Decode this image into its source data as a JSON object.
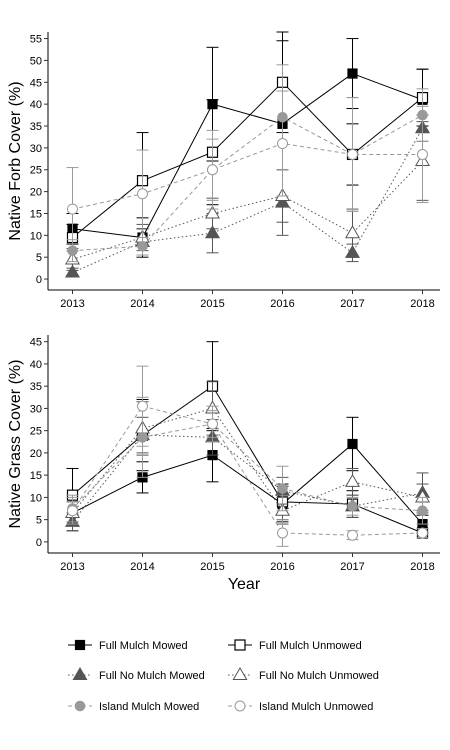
{
  "chart_data": [
    {
      "type": "line",
      "title": "",
      "xlabel": "",
      "ylabel": "Native Forb Cover (%)",
      "x": [
        2013,
        2014,
        2015,
        2016,
        2017,
        2018
      ],
      "xlim": [
        2012.65,
        2018.25
      ],
      "ylim": [
        -2.5,
        56.5
      ],
      "yticks": [
        0,
        5,
        10,
        15,
        20,
        25,
        30,
        35,
        40,
        45,
        50,
        55
      ],
      "grid": false,
      "series": [
        {
          "key": "full_mulch_mowed",
          "values": [
            11.5,
            9.5,
            40.0,
            35.5,
            47.0,
            41.0
          ],
          "err": [
            3.5,
            4.5,
            13.0,
            19.0,
            8.0,
            7.0
          ]
        },
        {
          "key": "full_mulch_unmowed",
          "values": [
            9.5,
            22.5,
            29.0,
            45.0,
            28.5,
            41.5
          ],
          "err": [
            3.0,
            11.0,
            12.0,
            11.5,
            7.0,
            6.5
          ]
        },
        {
          "key": "full_no_mulch_mowed",
          "values": [
            1.5,
            8.5,
            10.5,
            17.5,
            6.0,
            34.5
          ],
          "err": [
            1.0,
            3.0,
            4.5,
            7.5,
            2.0,
            3.0
          ]
        },
        {
          "key": "full_no_mulch_unmowed",
          "values": [
            4.5,
            9.5,
            15.0,
            19.0,
            10.5,
            27.0
          ],
          "err": [
            2.5,
            3.0,
            3.5,
            6.0,
            5.5,
            9.0
          ]
        },
        {
          "key": "island_mulch_mowed",
          "values": [
            6.5,
            7.5,
            25.0,
            37.0,
            28.5,
            37.5
          ],
          "err": [
            2.5,
            2.0,
            7.0,
            12.0,
            13.0,
            6.0
          ]
        },
        {
          "key": "island_mulch_unmowed",
          "values": [
            16.0,
            19.5,
            25.0,
            31.0,
            28.5,
            28.5
          ],
          "err": [
            9.5,
            10.0,
            9.0,
            12.0,
            13.0,
            11.0
          ]
        }
      ]
    },
    {
      "type": "line",
      "title": "",
      "xlabel": "Year",
      "ylabel": "Native Grass Cover (%)",
      "x": [
        2013,
        2014,
        2015,
        2016,
        2017,
        2018
      ],
      "xlim": [
        2012.65,
        2018.25
      ],
      "ylim": [
        -2.5,
        46.5
      ],
      "yticks": [
        0,
        5,
        10,
        15,
        20,
        25,
        30,
        35,
        40,
        45
      ],
      "grid": false,
      "series": [
        {
          "key": "full_mulch_mowed",
          "values": [
            6.5,
            14.5,
            19.5,
            8.5,
            22.0,
            4.0
          ],
          "err": [
            4.0,
            3.5,
            6.0,
            4.0,
            6.0,
            2.0
          ]
        },
        {
          "key": "full_mulch_unmowed",
          "values": [
            10.5,
            24.0,
            35.0,
            9.0,
            8.5,
            2.0
          ],
          "err": [
            6.0,
            8.0,
            10.0,
            4.0,
            3.0,
            1.0
          ]
        },
        {
          "key": "full_no_mulch_mowed",
          "values": [
            4.5,
            24.0,
            23.5,
            11.5,
            8.0,
            11.0
          ],
          "err": [
            2.0,
            4.0,
            4.0,
            3.0,
            2.5,
            4.5
          ]
        },
        {
          "key": "full_no_mulch_unmowed",
          "values": [
            6.5,
            25.5,
            30.0,
            7.0,
            13.5,
            10.0
          ],
          "err": [
            2.5,
            6.0,
            6.0,
            3.0,
            3.0,
            3.0
          ]
        },
        {
          "key": "island_mulch_mowed",
          "values": [
            7.5,
            23.5,
            26.5,
            12.0,
            8.0,
            7.0
          ],
          "err": [
            3.0,
            9.0,
            4.0,
            5.0,
            2.0,
            3.0
          ]
        },
        {
          "key": "island_mulch_unmowed",
          "values": [
            7.0,
            30.5,
            26.5,
            2.0,
            1.5,
            2.0
          ],
          "err": [
            3.0,
            9.0,
            3.0,
            3.0,
            1.0,
            1.0
          ]
        }
      ]
    }
  ],
  "legend": {
    "placement": "bottom",
    "items": [
      {
        "key": "full_mulch_mowed",
        "label": "Full Mulch Mowed"
      },
      {
        "key": "full_mulch_unmowed",
        "label": "Full Mulch Unmowed"
      },
      {
        "key": "full_no_mulch_mowed",
        "label": "Full No Mulch Mowed"
      },
      {
        "key": "full_no_mulch_unmowed",
        "label": "Full No Mulch Unmowed"
      },
      {
        "key": "island_mulch_mowed",
        "label": "Island Mulch Mowed"
      },
      {
        "key": "island_mulch_unmowed",
        "label": "Island Mulch Unmowed"
      }
    ]
  },
  "styles": {
    "full_mulch_mowed": {
      "color": "#000000",
      "line": "solid",
      "marker": "square-filled"
    },
    "full_mulch_unmowed": {
      "color": "#000000",
      "line": "solid",
      "marker": "square-open"
    },
    "full_no_mulch_mowed": {
      "color": "#555555",
      "line": "dotted",
      "marker": "triangle-filled"
    },
    "full_no_mulch_unmowed": {
      "color": "#555555",
      "line": "dotted",
      "marker": "triangle-open"
    },
    "island_mulch_mowed": {
      "color": "#999999",
      "line": "dashed",
      "marker": "circle-filled"
    },
    "island_mulch_unmowed": {
      "color": "#999999",
      "line": "dashed",
      "marker": "circle-open"
    }
  }
}
